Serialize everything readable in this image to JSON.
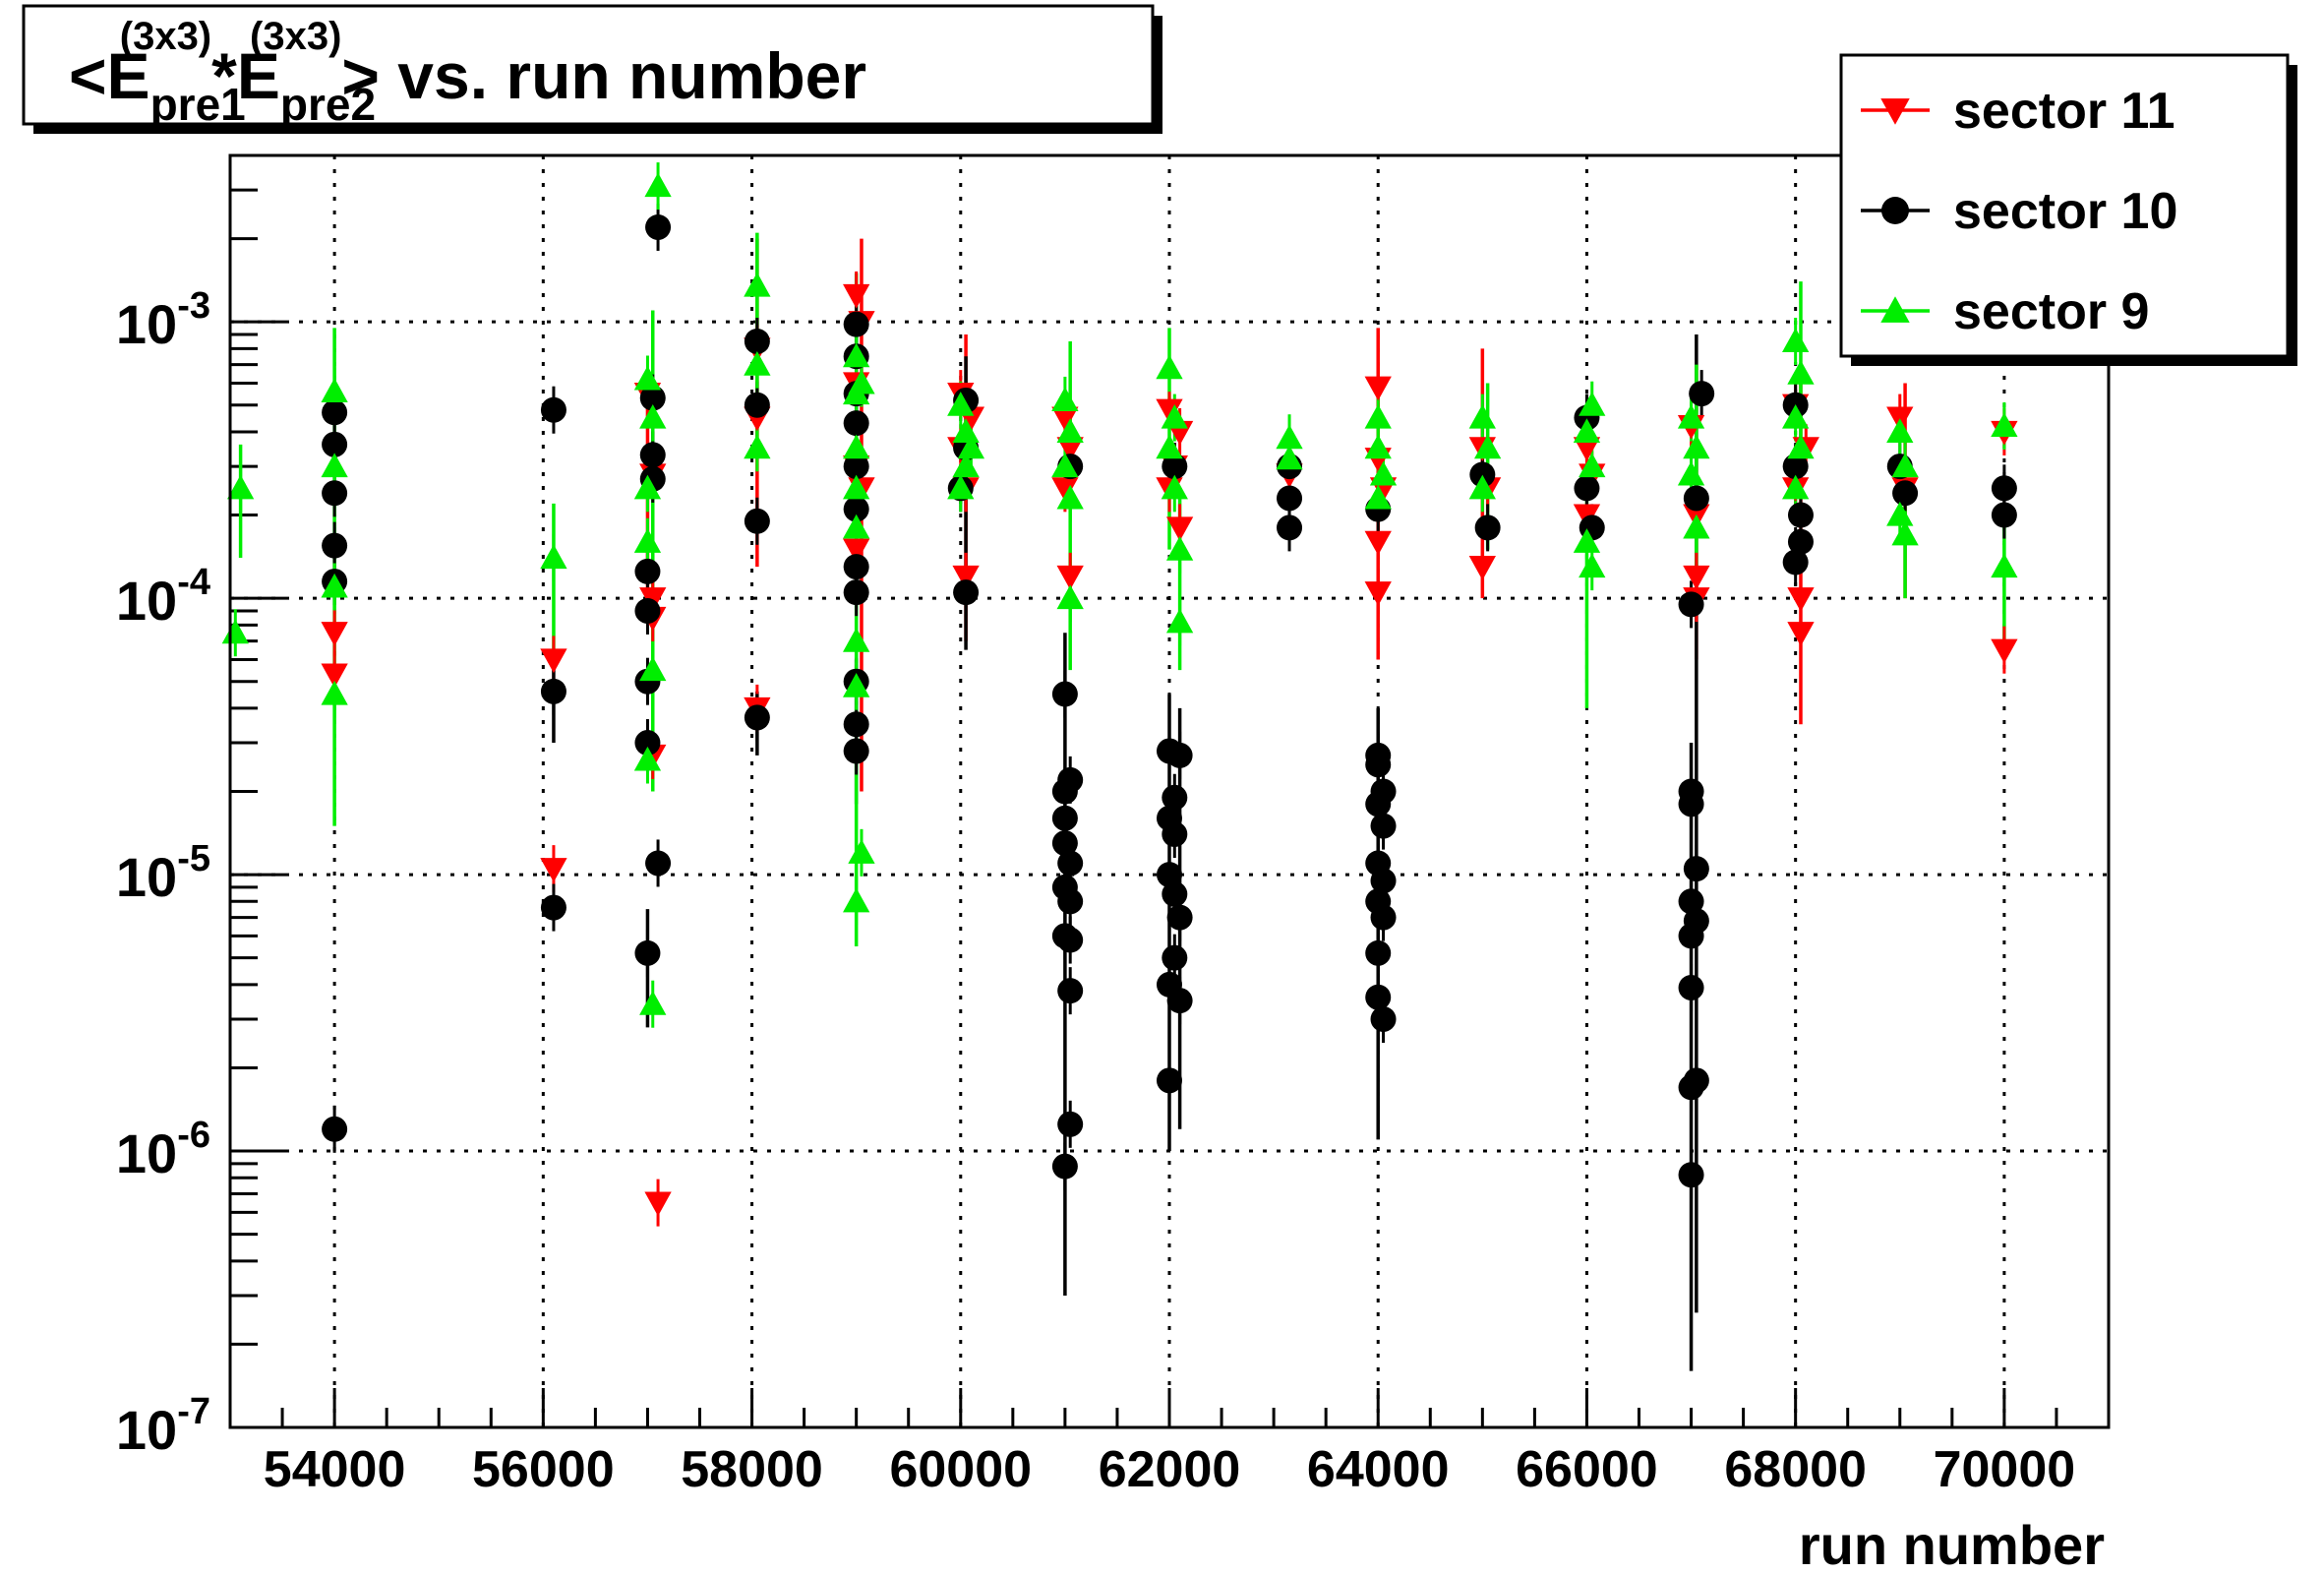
{
  "chart_data": {
    "type": "scatter",
    "title": {
      "prefix": "<E",
      "sub1": "pre1",
      "sup1": "(3x3)",
      "mid": "*E",
      "sub2": "pre2",
      "sup2": "(3x3)",
      "suffix": "> vs. run number"
    },
    "xlabel": "run number",
    "ylabel": "",
    "xlim": [
      53000,
      71000
    ],
    "ylim": [
      1e-07,
      0.004
    ],
    "yscale": "log",
    "grid": true,
    "legend_position": "top-right",
    "x_ticks": [
      54000,
      56000,
      58000,
      60000,
      62000,
      64000,
      66000,
      68000,
      70000
    ],
    "x_tick_labels": [
      "54000",
      "56000",
      "58000",
      "60000",
      "62000",
      "64000",
      "66000",
      "68000",
      "70000"
    ],
    "y_ticks": [
      1e-07,
      1e-06,
      1e-05,
      0.0001,
      0.001
    ],
    "y_tick_labels": [
      {
        "base": "10",
        "exp": "-7"
      },
      {
        "base": "10",
        "exp": "-6"
      },
      {
        "base": "10",
        "exp": "-5"
      },
      {
        "base": "10",
        "exp": "-4"
      },
      {
        "base": "10",
        "exp": "-3"
      }
    ],
    "series": [
      {
        "name": "sector 11",
        "color": "#ff0000",
        "marker": "triangle-down",
        "points": [
          [
            54000,
            7.5e-05
          ],
          [
            54000,
            5.3e-05
          ],
          [
            56100,
            6e-05
          ],
          [
            56100,
            1.05e-05
          ],
          [
            57000,
            0.00055
          ],
          [
            57050,
            0.00028
          ],
          [
            57050,
            0.0001
          ],
          [
            57050,
            8.5e-05
          ],
          [
            57050,
            2.7e-05
          ],
          [
            57100,
            6.5e-07
          ],
          [
            58050,
            0.00045
          ],
          [
            58050,
            0.0008
          ],
          [
            58050,
            4e-05
          ],
          [
            59000,
            0.00125
          ],
          [
            59000,
            0.0006
          ],
          [
            59000,
            0.0003
          ],
          [
            59000,
            0.00015
          ],
          [
            59050,
            0.001
          ],
          [
            59050,
            0.00025
          ],
          [
            60000,
            0.00055
          ],
          [
            60000,
            0.00035
          ],
          [
            60050,
            0.00025
          ],
          [
            60050,
            0.00012
          ],
          [
            60100,
            0.00045
          ],
          [
            61000,
            0.00045
          ],
          [
            61000,
            0.00025
          ],
          [
            61050,
            0.00035
          ],
          [
            61050,
            0.00012
          ],
          [
            62000,
            0.00048
          ],
          [
            62000,
            0.00025
          ],
          [
            62050,
            0.0003
          ],
          [
            62100,
            0.00018
          ],
          [
            62100,
            0.0004
          ],
          [
            63150,
            0.00028
          ],
          [
            64000,
            0.00058
          ],
          [
            64000,
            0.00032
          ],
          [
            64000,
            0.00016
          ],
          [
            64000,
            0.000105
          ],
          [
            64050,
            0.00025
          ],
          [
            65000,
            0.00035
          ],
          [
            65000,
            0.00013
          ],
          [
            65050,
            0.00025
          ],
          [
            66000,
            0.00035
          ],
          [
            66000,
            0.0002
          ],
          [
            66050,
            0.00028
          ],
          [
            67000,
            0.00042
          ],
          [
            67050,
            0.0002
          ],
          [
            67050,
            0.00012
          ],
          [
            67050,
            0.0001
          ],
          [
            68000,
            0.0005
          ],
          [
            68000,
            0.00025
          ],
          [
            68050,
            0.0001
          ],
          [
            68050,
            7.5e-05
          ],
          [
            68100,
            0.00035
          ],
          [
            69000,
            0.00045
          ],
          [
            69050,
            0.00025
          ],
          [
            70000,
            0.0004
          ],
          [
            70000,
            6.5e-05
          ]
        ],
        "error_bars": [
          [
            57000,
            0.0001,
            0.0006
          ],
          [
            59050,
            2e-05,
            0.002
          ],
          [
            60050,
            7e-05,
            0.0009
          ],
          [
            64000,
            6e-05,
            0.00095
          ],
          [
            65000,
            0.0001,
            0.0008
          ],
          [
            67050,
            6e-05,
            0.0007
          ],
          [
            68050,
            3.5e-05,
            0.0006
          ],
          [
            69050,
            0.0001,
            0.0006
          ],
          [
            58050,
            0.00013,
            0.002
          ]
        ]
      },
      {
        "name": "sector 10",
        "color": "#000000",
        "marker": "circle",
        "points": [
          [
            54000,
            0.00047
          ],
          [
            54000,
            0.00036
          ],
          [
            54000,
            0.00024
          ],
          [
            54000,
            0.000155
          ],
          [
            54000,
            0.000115
          ],
          [
            54000,
            1.2e-06
          ],
          [
            56100,
            0.00048
          ],
          [
            56100,
            4.6e-05
          ],
          [
            56100,
            7.6e-06
          ],
          [
            57050,
            0.00053
          ],
          [
            57050,
            0.00033
          ],
          [
            57050,
            0.00027
          ],
          [
            57000,
            0.000125
          ],
          [
            57000,
            9e-05
          ],
          [
            57000,
            5e-05
          ],
          [
            57000,
            3e-05
          ],
          [
            57100,
            1.1e-05
          ],
          [
            57000,
            5.2e-06
          ],
          [
            57100,
            0.0022
          ],
          [
            58050,
            0.00085
          ],
          [
            58050,
            0.0005
          ],
          [
            58050,
            0.00019
          ],
          [
            58050,
            3.7e-05
          ],
          [
            59000,
            0.00098
          ],
          [
            59000,
            0.00075
          ],
          [
            59000,
            0.00055
          ],
          [
            59000,
            0.00043
          ],
          [
            59000,
            0.0003
          ],
          [
            59000,
            0.00021
          ],
          [
            59000,
            0.00013
          ],
          [
            59000,
            0.000105
          ],
          [
            59000,
            5e-05
          ],
          [
            59000,
            3.5e-05
          ],
          [
            59000,
            2.8e-05
          ],
          [
            60050,
            0.00052
          ],
          [
            60050,
            0.00035
          ],
          [
            60000,
            0.00025
          ],
          [
            60050,
            0.000105
          ],
          [
            61000,
            4.5e-05
          ],
          [
            61000,
            2e-05
          ],
          [
            61050,
            2.2e-05
          ],
          [
            61000,
            1.6e-05
          ],
          [
            61000,
            1.3e-05
          ],
          [
            61050,
            1.1e-05
          ],
          [
            61000,
            9e-06
          ],
          [
            61050,
            8e-06
          ],
          [
            61000,
            6e-06
          ],
          [
            61050,
            5.8e-06
          ],
          [
            61050,
            3.8e-06
          ],
          [
            61050,
            1.25e-06
          ],
          [
            61000,
            8.8e-07
          ],
          [
            61050,
            0.0003
          ],
          [
            62000,
            2.8e-05
          ],
          [
            62100,
            2.7e-05
          ],
          [
            62050,
            1.9e-05
          ],
          [
            62000,
            1.6e-05
          ],
          [
            62050,
            1.4e-05
          ],
          [
            62000,
            1e-05
          ],
          [
            62050,
            8.5e-06
          ],
          [
            62100,
            7e-06
          ],
          [
            62050,
            5e-06
          ],
          [
            62000,
            4e-06
          ],
          [
            62100,
            3.5e-06
          ],
          [
            62000,
            1.8e-06
          ],
          [
            62050,
            0.0003
          ],
          [
            63150,
            0.0003
          ],
          [
            63150,
            0.00023
          ],
          [
            63150,
            0.00018
          ],
          [
            64000,
            2.7e-05
          ],
          [
            64000,
            2.5e-05
          ],
          [
            64050,
            2e-05
          ],
          [
            64000,
            1.8e-05
          ],
          [
            64050,
            1.5e-05
          ],
          [
            64000,
            1.1e-05
          ],
          [
            64050,
            9.5e-06
          ],
          [
            64000,
            8e-06
          ],
          [
            64050,
            7e-06
          ],
          [
            64000,
            5.2e-06
          ],
          [
            64000,
            3.6e-06
          ],
          [
            64050,
            3e-06
          ],
          [
            64000,
            0.00021
          ],
          [
            65000,
            0.00028
          ],
          [
            65050,
            0.00018
          ],
          [
            66000,
            0.00045
          ],
          [
            66000,
            0.00025
          ],
          [
            66050,
            0.00018
          ],
          [
            67100,
            0.00055
          ],
          [
            67050,
            0.00023
          ],
          [
            67000,
            9.5e-05
          ],
          [
            67000,
            2e-05
          ],
          [
            67000,
            1.8e-05
          ],
          [
            67050,
            1.05e-05
          ],
          [
            67000,
            8e-06
          ],
          [
            67050,
            6.8e-06
          ],
          [
            67000,
            6e-06
          ],
          [
            67000,
            3.9e-06
          ],
          [
            67050,
            1.8e-06
          ],
          [
            67000,
            1.7e-06
          ],
          [
            67000,
            8.2e-07
          ],
          [
            68000,
            0.0005
          ],
          [
            68000,
            0.0003
          ],
          [
            68050,
            0.0002
          ],
          [
            68050,
            0.00016
          ],
          [
            68000,
            0.000135
          ],
          [
            69000,
            0.0003
          ],
          [
            69050,
            0.00024
          ],
          [
            70000,
            0.00025
          ],
          [
            70000,
            0.0002
          ]
        ],
        "error_bars": [
          [
            61000,
            3e-07,
            7.5e-05
          ],
          [
            62000,
            1e-06,
            4.5e-05
          ],
          [
            62100,
            1.2e-06,
            4e-05
          ],
          [
            64000,
            1.1e-06,
            4e-05
          ],
          [
            67000,
            1.6e-07,
            3e-05
          ],
          [
            67050,
            2.6e-07,
            0.0009
          ],
          [
            57000,
            2.8e-06,
            7.5e-06
          ],
          [
            56100,
            3e-05,
            6.5e-05
          ],
          [
            60050,
            6.5e-05,
            0.00075
          ],
          [
            59000,
            1.8e-05,
            6e-05
          ],
          [
            58050,
            2.7e-05,
            4.6e-05
          ]
        ]
      },
      {
        "name": "sector 9",
        "color": "#00ee00",
        "marker": "triangle-up",
        "points": [
          [
            53050,
            7.5e-05
          ],
          [
            53100,
            0.00025
          ],
          [
            54000,
            0.00056
          ],
          [
            54000,
            0.0003
          ],
          [
            54000,
            0.00011
          ],
          [
            54000,
            4.5e-05
          ],
          [
            56100,
            0.00014
          ],
          [
            57000,
            0.00062
          ],
          [
            57050,
            0.00045
          ],
          [
            57000,
            0.00025
          ],
          [
            57000,
            0.00016
          ],
          [
            57050,
            5.5e-05
          ],
          [
            57000,
            2.6e-05
          ],
          [
            57050,
            3.4e-06
          ],
          [
            57100,
            0.0031
          ],
          [
            58050,
            0.00135
          ],
          [
            58050,
            0.0007
          ],
          [
            58050,
            0.00035
          ],
          [
            59000,
            0.00075
          ],
          [
            59000,
            0.00055
          ],
          [
            59000,
            0.00035
          ],
          [
            59000,
            0.00025
          ],
          [
            59000,
            0.00018
          ],
          [
            59000,
            7e-05
          ],
          [
            59000,
            4.8e-05
          ],
          [
            59050,
            1.2e-05
          ],
          [
            59000,
            8e-06
          ],
          [
            59050,
            0.0006
          ],
          [
            60000,
            0.0005
          ],
          [
            60050,
            0.0004
          ],
          [
            60050,
            0.0003
          ],
          [
            60000,
            0.00025
          ],
          [
            60100,
            0.00035
          ],
          [
            61000,
            0.00052
          ],
          [
            61050,
            0.0004
          ],
          [
            61000,
            0.0003
          ],
          [
            61050,
            0.00023
          ],
          [
            61050,
            0.0001
          ],
          [
            62000,
            0.00068
          ],
          [
            62050,
            0.00045
          ],
          [
            62000,
            0.00035
          ],
          [
            62050,
            0.00025
          ],
          [
            62100,
            0.00015
          ],
          [
            62100,
            8.2e-05
          ],
          [
            63150,
            0.00038
          ],
          [
            63150,
            0.00032
          ],
          [
            64000,
            0.00045
          ],
          [
            64000,
            0.00035
          ],
          [
            64050,
            0.00028
          ],
          [
            64000,
            0.00023
          ],
          [
            65000,
            0.00045
          ],
          [
            65050,
            0.00035
          ],
          [
            65000,
            0.00025
          ],
          [
            66050,
            0.0005
          ],
          [
            66000,
            0.0004
          ],
          [
            66050,
            0.0003
          ],
          [
            66000,
            0.00016
          ],
          [
            66050,
            0.00013
          ],
          [
            67000,
            0.00045
          ],
          [
            67050,
            0.00035
          ],
          [
            67000,
            0.00028
          ],
          [
            67050,
            0.00018
          ],
          [
            68000,
            0.00085
          ],
          [
            68050,
            0.00065
          ],
          [
            68000,
            0.00045
          ],
          [
            68050,
            0.00035
          ],
          [
            68000,
            0.00025
          ],
          [
            69000,
            0.0004
          ],
          [
            69050,
            0.0003
          ],
          [
            69000,
            0.0002
          ],
          [
            69050,
            0.00017
          ],
          [
            70000,
            0.00042
          ],
          [
            70000,
            0.00013
          ]
        ],
        "error_bars": [
          [
            54000,
            1.5e-05,
            0.00095
          ],
          [
            56100,
            6e-05,
            0.00022
          ],
          [
            57050,
            2e-05,
            0.0011
          ],
          [
            58050,
            0.00035,
            0.0021
          ],
          [
            59000,
            5.5e-06,
            0.0015
          ],
          [
            62100,
            5.5e-05,
            0.00025
          ],
          [
            66000,
            4e-05,
            0.00025
          ],
          [
            68050,
            0.00035,
            0.0014
          ],
          [
            69050,
            0.0001,
            0.00025
          ],
          [
            70000,
            7e-05,
            0.0002
          ],
          [
            53100,
            0.00014,
            0.00036
          ],
          [
            61050,
            5.5e-05,
            0.00085
          ],
          [
            62000,
            0.00015,
            0.00095
          ],
          [
            65050,
            0.00015,
            0.0006
          ],
          [
            67050,
            0.0001,
            0.0007
          ]
        ]
      }
    ]
  }
}
